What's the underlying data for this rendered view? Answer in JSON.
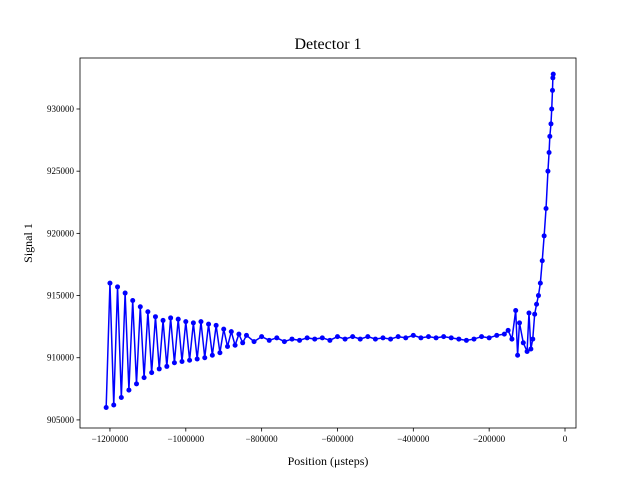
{
  "chart_data": {
    "type": "line",
    "title": "Detector 1",
    "xlabel": "Position (μsteps)",
    "ylabel": "Signal 1",
    "x": [
      -1210000,
      -1200000,
      -1190000,
      -1180000,
      -1170000,
      -1160000,
      -1150000,
      -1140000,
      -1130000,
      -1120000,
      -1110000,
      -1100000,
      -1090000,
      -1080000,
      -1070000,
      -1060000,
      -1050000,
      -1040000,
      -1030000,
      -1020000,
      -1010000,
      -1000000,
      -990000,
      -980000,
      -970000,
      -960000,
      -950000,
      -940000,
      -930000,
      -920000,
      -910000,
      -900000,
      -890000,
      -880000,
      -870000,
      -860000,
      -850000,
      -840000,
      -820000,
      -800000,
      -780000,
      -760000,
      -740000,
      -720000,
      -700000,
      -680000,
      -660000,
      -640000,
      -620000,
      -600000,
      -580000,
      -560000,
      -540000,
      -520000,
      -500000,
      -480000,
      -460000,
      -440000,
      -420000,
      -400000,
      -380000,
      -360000,
      -340000,
      -320000,
      -300000,
      -280000,
      -260000,
      -240000,
      -220000,
      -200000,
      -180000,
      -160000,
      -150000,
      -140000,
      -130000,
      -125000,
      -120000,
      -110000,
      -100000,
      -95000,
      -90000,
      -85000,
      -80000,
      -75000,
      -70000,
      -65000,
      -60000,
      -55000,
      -50000,
      -45000,
      -42000,
      -40000,
      -37000,
      -35000,
      -33000,
      -32000,
      -31000
    ],
    "series": [
      {
        "name": "Signal 1",
        "color": "#0000ff",
        "values": [
          906000,
          916000,
          906200,
          915700,
          906800,
          915200,
          907400,
          914600,
          907900,
          914100,
          908400,
          913700,
          908800,
          913300,
          909100,
          913000,
          909300,
          913200,
          909600,
          913100,
          909700,
          912900,
          909800,
          912800,
          909900,
          912900,
          910000,
          912700,
          910200,
          912600,
          910400,
          912300,
          910900,
          912100,
          911000,
          911900,
          911200,
          911800,
          911300,
          911700,
          911400,
          911600,
          911300,
          911500,
          911400,
          911600,
          911500,
          911600,
          911400,
          911700,
          911500,
          911700,
          911500,
          911700,
          911500,
          911600,
          911500,
          911700,
          911600,
          911800,
          911600,
          911700,
          911600,
          911700,
          911600,
          911500,
          911400,
          911500,
          911700,
          911600,
          911800,
          911900,
          912200,
          911500,
          913800,
          910200,
          912800,
          911200,
          910500,
          913600,
          910700,
          911500,
          913500,
          914300,
          915000,
          916000,
          917800,
          919800,
          922000,
          925000,
          926500,
          927800,
          928800,
          930000,
          931500,
          932500,
          932800
        ]
      }
    ],
    "xlim": [
      -1279000,
      29000
    ],
    "ylim": [
      904350,
      934100
    ],
    "xticks": [
      {
        "value": -1200000,
        "label": "−1200000"
      },
      {
        "value": -1000000,
        "label": "−1000000"
      },
      {
        "value": -800000,
        "label": "−800000"
      },
      {
        "value": -600000,
        "label": "−600000"
      },
      {
        "value": -400000,
        "label": "−400000"
      },
      {
        "value": -200000,
        "label": "−200000"
      },
      0
    ],
    "yticks": [
      905000,
      910000,
      915000,
      920000,
      925000,
      930000
    ]
  }
}
